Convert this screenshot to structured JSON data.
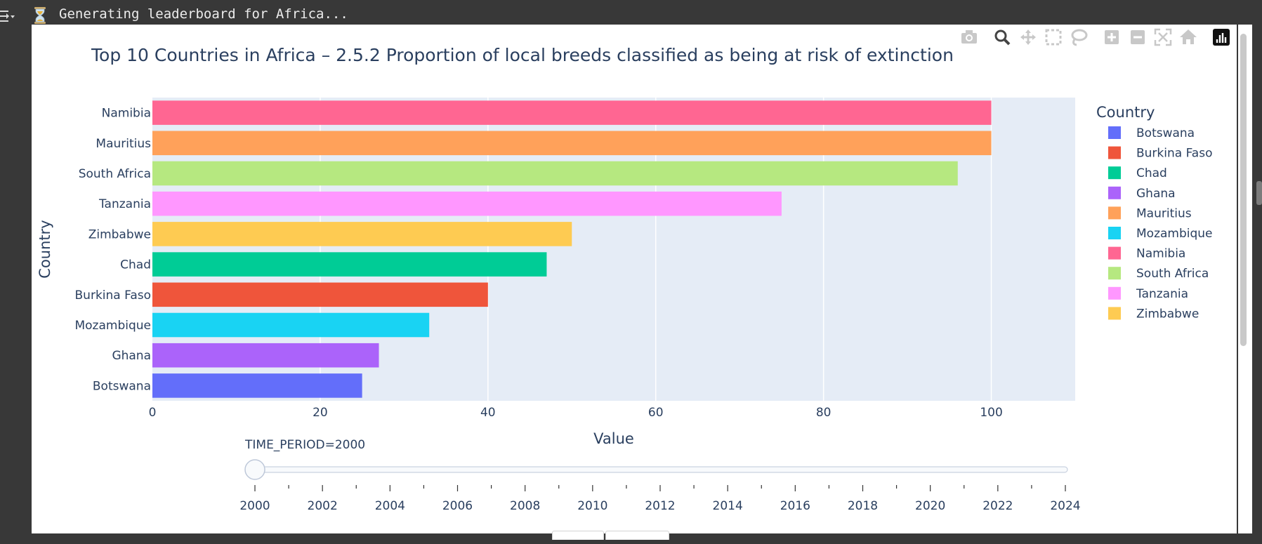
{
  "status": {
    "text": "Generating leaderboard for Africa...",
    "icon": "hourglass-icon"
  },
  "modebar": {
    "buttons": [
      {
        "name": "camera-icon",
        "label": "Download plot as a png"
      },
      {
        "name": "zoom-icon",
        "label": "Zoom"
      },
      {
        "name": "pan-icon",
        "label": "Pan"
      },
      {
        "name": "box-select-icon",
        "label": "Box Select"
      },
      {
        "name": "lasso-icon",
        "label": "Lasso Select"
      },
      {
        "name": "zoom-in-icon",
        "label": "Zoom in"
      },
      {
        "name": "zoom-out-icon",
        "label": "Zoom out"
      },
      {
        "name": "autoscale-icon",
        "label": "Autoscale"
      },
      {
        "name": "home-icon",
        "label": "Reset axes"
      },
      {
        "name": "plotly-logo-icon",
        "label": "Produced with Plotly"
      }
    ]
  },
  "chart_data": {
    "type": "bar",
    "orientation": "horizontal",
    "title": "Top 10 Countries in Africa – 2.5.2 Proportion of local breeds classified as being at risk of extinction",
    "xlabel": "Value",
    "ylabel": "Country",
    "xlim": [
      0,
      110
    ],
    "xticks": [
      0,
      20,
      40,
      60,
      80,
      100
    ],
    "grid": true,
    "plot_bg": "#e5ecf6",
    "legend": {
      "title": "Country",
      "position": "right",
      "entries": [
        {
          "name": "Botswana",
          "color": "#636efa"
        },
        {
          "name": "Burkina Faso",
          "color": "#ef553b"
        },
        {
          "name": "Chad",
          "color": "#00cc96"
        },
        {
          "name": "Ghana",
          "color": "#ab63fa"
        },
        {
          "name": "Mauritius",
          "color": "#ffa15a"
        },
        {
          "name": "Mozambique",
          "color": "#19d3f3"
        },
        {
          "name": "Namibia",
          "color": "#ff6692"
        },
        {
          "name": "South Africa",
          "color": "#b6e880"
        },
        {
          "name": "Tanzania",
          "color": "#ff97ff"
        },
        {
          "name": "Zimbabwe",
          "color": "#fecb52"
        }
      ]
    },
    "categories": [
      "Namibia",
      "Mauritius",
      "South Africa",
      "Tanzania",
      "Zimbabwe",
      "Chad",
      "Burkina Faso",
      "Mozambique",
      "Ghana",
      "Botswana"
    ],
    "values": [
      100,
      100,
      96,
      75,
      50,
      47,
      40,
      33,
      27,
      25
    ],
    "colors": [
      "#ff6692",
      "#ffa15a",
      "#b6e880",
      "#ff97ff",
      "#fecb52",
      "#00cc96",
      "#ef553b",
      "#19d3f3",
      "#ab63fa",
      "#636efa"
    ]
  },
  "slider": {
    "current_label": "TIME_PERIOD=2000",
    "value": 2000,
    "min": 2000,
    "max": 2024,
    "labels": [
      "2000",
      "2002",
      "2004",
      "2006",
      "2008",
      "2010",
      "2012",
      "2014",
      "2016",
      "2018",
      "2020",
      "2022",
      "2024"
    ]
  }
}
